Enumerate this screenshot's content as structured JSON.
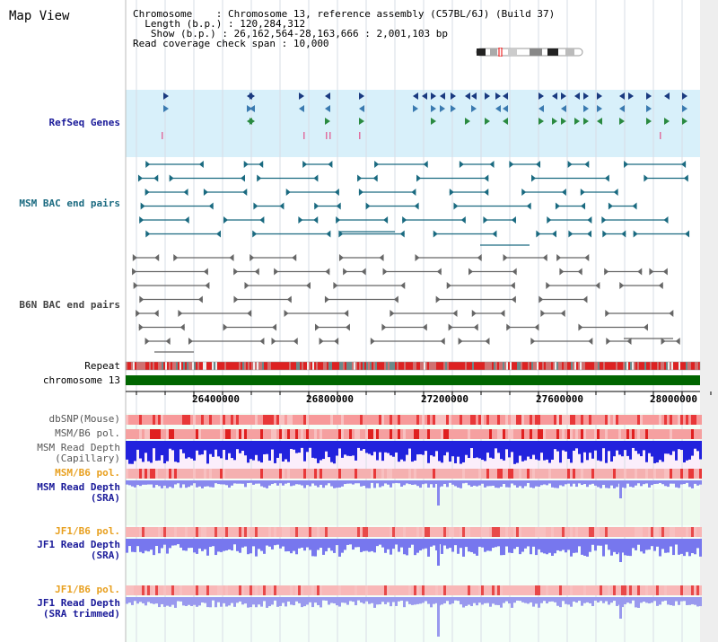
{
  "title": "Map View",
  "info": {
    "chromosome_label": "Chromosome",
    "chromosome_value": ": Chromosome 13, reference assembly (C57BL/6J) (Build 37)",
    "length_label": "Length (b.p.)",
    "length_value": ": 120,284,312",
    "show_label": "Show (b.p.)",
    "show_value": ": 26,162,564-28,163,666 : 2,001,103 bp",
    "span_label": "Read coverage check span",
    "span_value": ": 10,000"
  },
  "tracks": {
    "refseq": "RefSeq Genes",
    "msm_bac": "MSM BAC end pairs",
    "b6n_bac": "B6N BAC end pairs",
    "repeat": "Repeat",
    "chromosome": "chromosome 13",
    "dbsnp": "dbSNP(Mouse)",
    "msm_b6_pol": "MSM/B6 pol.",
    "msm_read_depth_cap_1": "MSM Read Depth",
    "msm_read_depth_cap_2": "(Capillary)",
    "msm_b6_pol2": "MSM/B6 pol.",
    "msm_read_depth_sra_1": "MSM Read Depth",
    "msm_read_depth_sra_2": "(SRA)",
    "jf1_b6_pol": "JF1/B6 pol.",
    "jf1_read_depth_sra_1": "JF1 Read Depth",
    "jf1_read_depth_sra_2": "(SRA)",
    "jf1_b6_pol2": "JF1/B6 pol.",
    "jf1_read_depth_trim_1": "JF1 Read Depth",
    "jf1_read_depth_trim_2": "(SRA trimmed)"
  },
  "axis_ticks": [
    "26400000",
    "26800000",
    "27200000",
    "27600000",
    "28000000"
  ],
  "colors": {
    "refseq_bg": "#d8f0fa",
    "bac_bg": "#e8fafa",
    "chromosome_green": "#006600",
    "repeat_red": "#dd2222",
    "depth_blue": "#2222dd",
    "depth_light_blue": "#8888ee",
    "pol_red": "#ee4444"
  }
}
